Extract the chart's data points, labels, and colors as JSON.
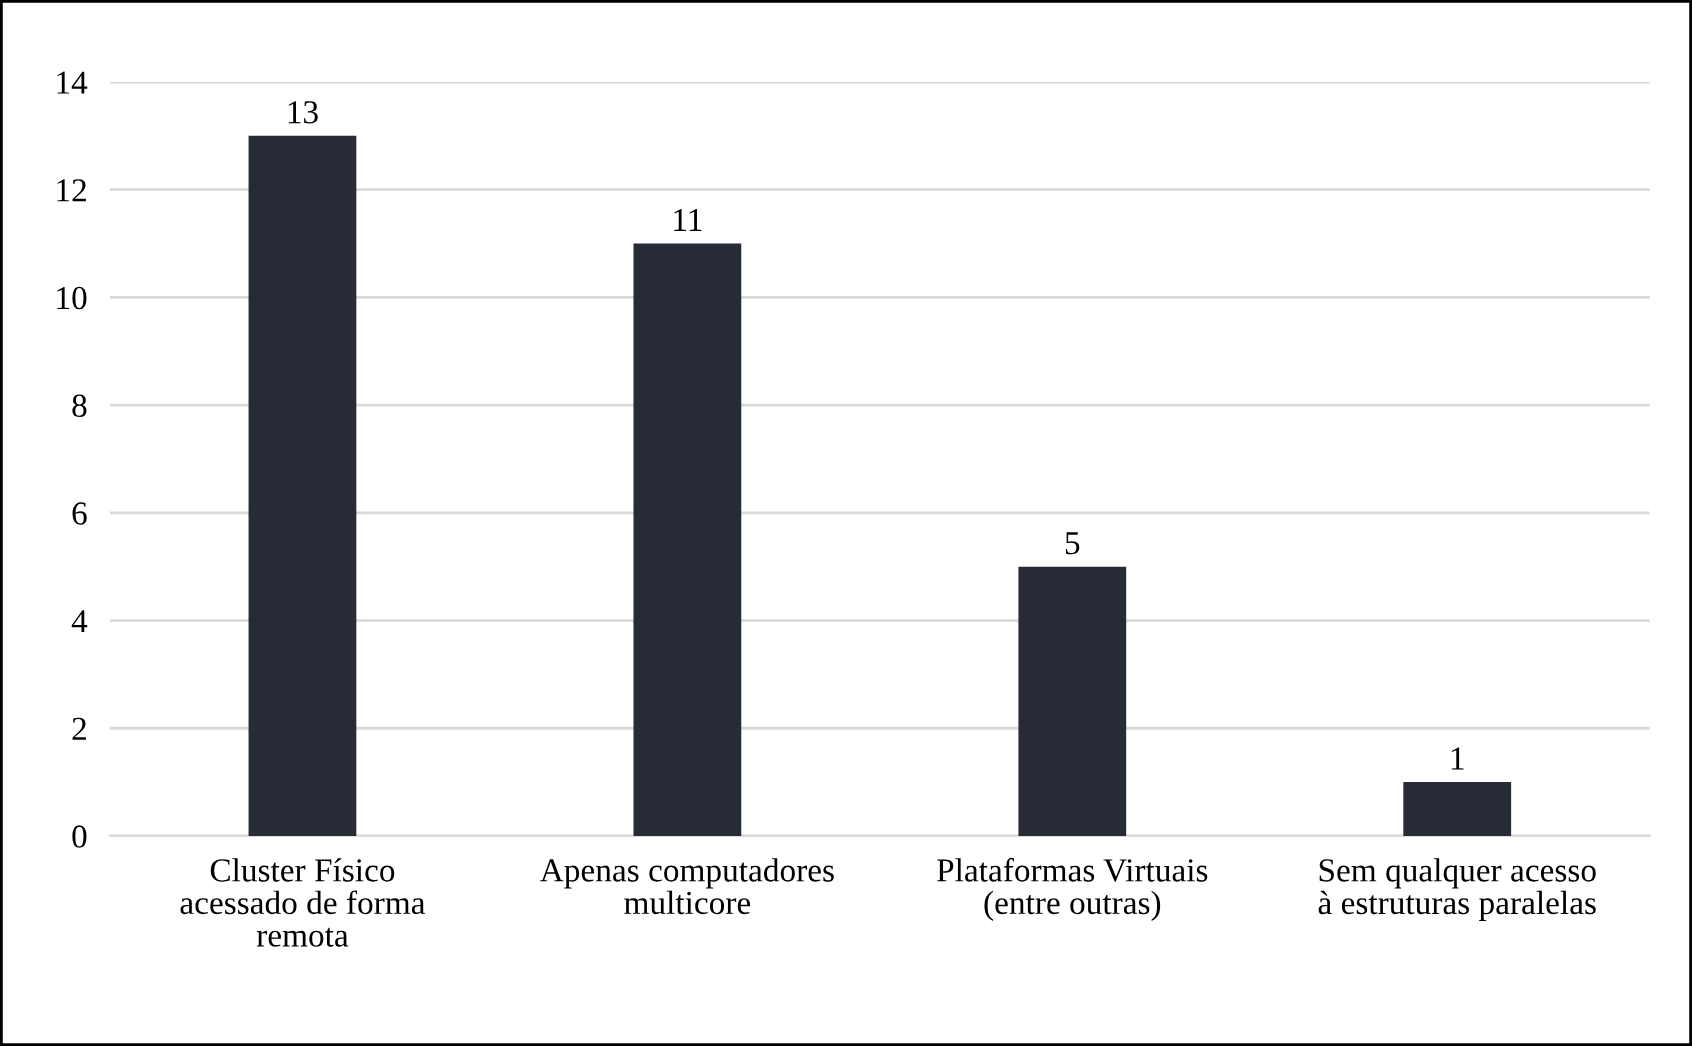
{
  "chart_data": {
    "type": "bar",
    "categories": [
      "Cluster Físico\nacessado de forma\nremota",
      "Apenas computadores\nmulticore",
      "Plataformas Virtuais\n(entre outras)",
      "Sem qualquer acesso\nà estruturas paralelas"
    ],
    "values": [
      13,
      11,
      5,
      1
    ],
    "color": "#262b35",
    "ylim": [
      0,
      14
    ],
    "yticks": [
      0,
      2,
      4,
      6,
      8,
      10,
      12,
      14
    ],
    "grid": "y",
    "data_labels": true
  }
}
